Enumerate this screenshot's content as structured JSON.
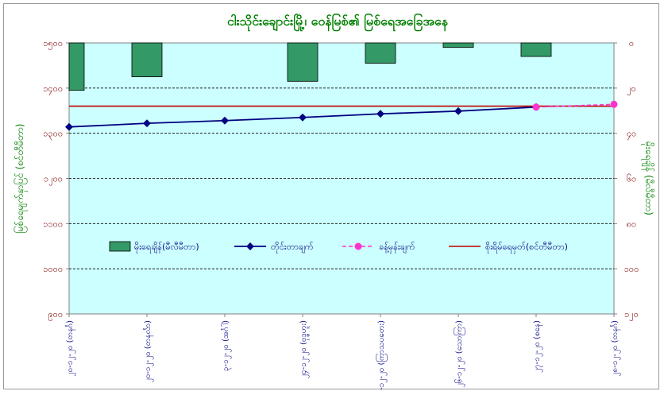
{
  "chart_data": {
    "type": "bar+line",
    "title": "ငါးသိုင်းချောင်းမြို့၊ ဝေ​​​န်မြစ်၏ မြစ်ရေအခြေအနေ",
    "ylabel_left": "မြစ်ရေမျက်နှာပြင် (စင်တီမီတာ)",
    "ylabel_right": "မိုးရေချိန် (မီလီမီတာ)",
    "ylim_left": [
      900,
      1500
    ],
    "left_ticks": [
      "၉၀၀",
      "၁၀၀၀",
      "၁၁၀၀",
      "၁၂၀၀",
      "၁၃၀၀",
      "၁၄၀၀",
      "၁၅၀၀"
    ],
    "right_ticks": [
      "၀",
      "၂၀",
      "၄၀",
      "၆၀",
      "၈၀",
      "၁၀၀",
      "၁၂၀"
    ],
    "ylim_right": [
      0,
      120
    ],
    "categories": [
      "၂၀-၁၂-၂၀ (တနင်္ဂ)",
      "၂၀-၁၂-၂၀ (တနင်္လာ)",
      "၃-၁၂-၂၀ (အင်္ဂါ)",
      "၂၄-၁၂-၂၀ (ဗုဒ္ဓဟူး)",
      "၂၅-၁၂-၂၀ (ကြာသပတေး)",
      "၂၆-၁၂-၂၀ (သောကြာ)",
      "၂၇-၁၂-၂၀ (စနေ)",
      "၂၈-၁၂-၂၀ (တနင်္ဂ)"
    ],
    "series": [
      {
        "name": "မိုးရေချိန်(မီလီမီတာ)",
        "kind": "bar",
        "axis": "right",
        "color": "#339966",
        "values": [
          21,
          15,
          null,
          17,
          9,
          2,
          6,
          null
        ]
      },
      {
        "name": "တိုင်းတာချက်",
        "kind": "line",
        "axis": "left",
        "color": "#000080",
        "values": [
          1314,
          1322,
          1328,
          1335,
          1343,
          1349,
          1358,
          null
        ]
      },
      {
        "name": "ခန့်မှန်းချက်",
        "kind": "line-dashed",
        "axis": "left",
        "color": "#FF33CC",
        "values": [
          null,
          null,
          null,
          null,
          null,
          null,
          1358,
          1364
        ]
      },
      {
        "name": "စိုးရိမ်ရေမှတ်(စင်တီမီတာ)",
        "kind": "hline",
        "axis": "left",
        "color": "#C00000",
        "value": 1360
      }
    ],
    "legend_placement": "center",
    "grid": true,
    "colors": {
      "plot_bg": "#CCFFFF",
      "title": "#008000",
      "axis_label": "#008000",
      "tick_label_left": "#800000",
      "tick_label_right": "#800000",
      "category_label": "#000080"
    }
  }
}
